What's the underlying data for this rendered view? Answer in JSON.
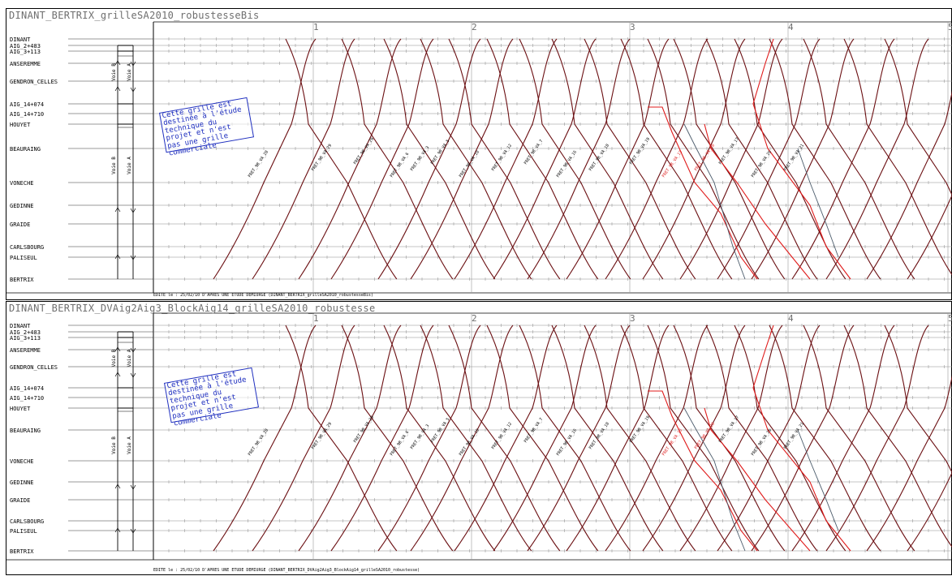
{
  "panels": [
    {
      "title": "DINANT_BERTRIX_grilleSA2010_robustesseBis",
      "edit_note": "EDITE le : 25/02/10 D'APRES UNE ETUDE DEMIURGE (DINANT_BERTRIX_grilleSA2010_robustesseBis)"
    },
    {
      "title": "DINANT_BERTRIX_DVAig2Aig3_BlockAig14_grilleSA2010_robustesse",
      "edit_note": "EDITE le : 25/02/10 D'APRES UNE ETUDE DEMIURGE (DINANT_BERTRIX_DVAig2Aig3_BlockAig14_grilleSA2010_robustesse)"
    }
  ],
  "hours": [
    "1",
    "2",
    "3",
    "4",
    "5"
  ],
  "stations": [
    {
      "label": "DINANT"
    },
    {
      "label": "AIG_2+483"
    },
    {
      "label": "AIG_3+113"
    },
    {
      "label": "ANSEREMME"
    },
    {
      "label": "GENDRON_CELLES"
    },
    {
      "label": "AIG_14+074"
    },
    {
      "label": "AIG_14+710"
    },
    {
      "label": "HOUYET"
    },
    {
      "label": "BEAURAING"
    },
    {
      "label": "VONECHE"
    },
    {
      "label": "GEDINNE"
    },
    {
      "label": "GRAIDE"
    },
    {
      "label": "CARLSBOURG"
    },
    {
      "label": "PALISEUL"
    },
    {
      "label": "BERTRIX"
    }
  ],
  "track_labels": {
    "voie_b": "Voie B",
    "voie_a": "Voie A"
  },
  "stamp": {
    "lines": [
      "Cette grille est",
      "destinée à l'étude",
      "technique du",
      "projet et n'est",
      "pas une grille",
      "commerciale"
    ]
  },
  "train_labels": [
    "FRET_9B_VA_28",
    "FRET_9B_VA_29",
    "FRET_9B_VA_29",
    "FRET_9B_VA_6",
    "FRET_9B_VA_3",
    "FRET_9B_VA_5",
    "FRET_9B_VA_10",
    "FRET_9B_VA_12",
    "FRET_9B_VA_7",
    "FRET_9B_VA_16",
    "FRET_9B_VA_18",
    "FRET_9B_VA_19",
    "FRET_9B_VA_13",
    "FRET_9B_VA_20",
    "FRET_9B_VA_17",
    "FRET_9B_VA_26",
    "FRET_9B_VA_21"
  ],
  "colors": {
    "train": "#6b0f12",
    "train_alt": "#e01b1b",
    "train_grey": "#4a5a6a",
    "grid": "#8a8a8a",
    "stamp": "#1f2fbf",
    "title": "#6f6f6f"
  }
}
